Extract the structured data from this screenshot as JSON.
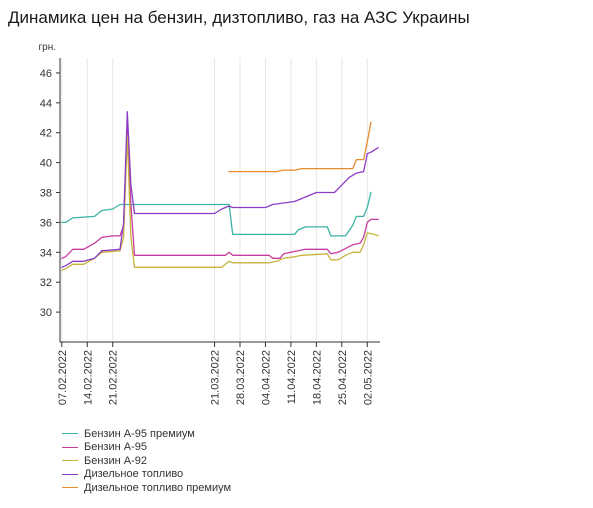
{
  "title": "Динамика цен на бензин, дизтопливо, газ на АЗС Украины",
  "chart_data": {
    "type": "line",
    "title": "Динамика цен на бензин, дизтопливо, газ на АЗС Украины",
    "ylabel": "грн.",
    "xlabel": "",
    "ylim": [
      28,
      47
    ],
    "yticks": [
      30,
      32,
      34,
      36,
      38,
      40,
      42,
      44,
      46
    ],
    "xrange": [
      "2022-02-07",
      "2022-05-05"
    ],
    "xticks": [
      "07.02.2022",
      "14.02.2022",
      "21.02.2022",
      "21.03.2022",
      "28.03.2022",
      "04.04.2022",
      "11.04.2022",
      "18.04.2022",
      "25.04.2022",
      "02.05.2022"
    ],
    "grid": "vertical",
    "legend_position": "bottom-left",
    "series": [
      {
        "name": "Бензин А-95 премиум",
        "color": "#3cb3a6",
        "points": [
          [
            "2022-02-07",
            36.0
          ],
          [
            "2022-02-08",
            36.0
          ],
          [
            "2022-02-10",
            36.3
          ],
          [
            "2022-02-16",
            36.4
          ],
          [
            "2022-02-18",
            36.8
          ],
          [
            "2022-02-21",
            36.9
          ],
          [
            "2022-02-23",
            37.2
          ],
          [
            "2022-03-25",
            37.2
          ],
          [
            "2022-03-26",
            35.2
          ],
          [
            "2022-04-12",
            35.2
          ],
          [
            "2022-04-13",
            35.5
          ],
          [
            "2022-04-15",
            35.7
          ],
          [
            "2022-04-21",
            35.7
          ],
          [
            "2022-04-22",
            35.1
          ],
          [
            "2022-04-26",
            35.1
          ],
          [
            "2022-04-28",
            35.8
          ],
          [
            "2022-04-29",
            36.4
          ],
          [
            "2022-05-01",
            36.4
          ],
          [
            "2022-05-02",
            37.0
          ],
          [
            "2022-05-03",
            38.0
          ]
        ]
      },
      {
        "name": "Бензин А-95",
        "color": "#c63c9d",
        "points": [
          [
            "2022-02-07",
            33.6
          ],
          [
            "2022-02-08",
            33.7
          ],
          [
            "2022-02-10",
            34.2
          ],
          [
            "2022-02-13",
            34.2
          ],
          [
            "2022-02-16",
            34.6
          ],
          [
            "2022-02-18",
            35.0
          ],
          [
            "2022-02-21",
            35.1
          ],
          [
            "2022-02-23",
            35.1
          ],
          [
            "2022-02-24",
            35.8
          ],
          [
            "2022-02-25",
            42.5
          ],
          [
            "2022-02-26",
            37.2
          ],
          [
            "2022-02-27",
            33.8
          ],
          [
            "2022-03-24",
            33.8
          ],
          [
            "2022-03-25",
            34.0
          ],
          [
            "2022-03-26",
            33.8
          ],
          [
            "2022-04-05",
            33.8
          ],
          [
            "2022-04-06",
            33.6
          ],
          [
            "2022-04-08",
            33.6
          ],
          [
            "2022-04-09",
            33.9
          ],
          [
            "2022-04-11",
            34.0
          ],
          [
            "2022-04-13",
            34.1
          ],
          [
            "2022-04-15",
            34.2
          ],
          [
            "2022-04-21",
            34.2
          ],
          [
            "2022-04-22",
            33.9
          ],
          [
            "2022-04-24",
            34.0
          ],
          [
            "2022-04-28",
            34.5
          ],
          [
            "2022-04-30",
            34.6
          ],
          [
            "2022-05-01",
            35.0
          ],
          [
            "2022-05-02",
            36.0
          ],
          [
            "2022-05-03",
            36.2
          ],
          [
            "2022-05-05",
            36.2
          ]
        ]
      },
      {
        "name": "Бензин А-92",
        "color": "#c6b43c",
        "points": [
          [
            "2022-02-07",
            32.8
          ],
          [
            "2022-02-08",
            32.9
          ],
          [
            "2022-02-10",
            33.2
          ],
          [
            "2022-02-13",
            33.2
          ],
          [
            "2022-02-16",
            33.6
          ],
          [
            "2022-02-18",
            34.0
          ],
          [
            "2022-02-23",
            34.1
          ],
          [
            "2022-02-24",
            35.0
          ],
          [
            "2022-02-25",
            41.8
          ],
          [
            "2022-02-26",
            35.0
          ],
          [
            "2022-02-27",
            33.0
          ],
          [
            "2022-03-23",
            33.0
          ],
          [
            "2022-03-25",
            33.4
          ],
          [
            "2022-03-26",
            33.3
          ],
          [
            "2022-04-05",
            33.3
          ],
          [
            "2022-04-07",
            33.4
          ],
          [
            "2022-04-09",
            33.6
          ],
          [
            "2022-04-12",
            33.7
          ],
          [
            "2022-04-14",
            33.8
          ],
          [
            "2022-04-21",
            33.9
          ],
          [
            "2022-04-22",
            33.5
          ],
          [
            "2022-04-24",
            33.5
          ],
          [
            "2022-04-26",
            33.8
          ],
          [
            "2022-04-28",
            34.0
          ],
          [
            "2022-04-30",
            34.0
          ],
          [
            "2022-05-01",
            34.5
          ],
          [
            "2022-05-02",
            35.3
          ],
          [
            "2022-05-04",
            35.2
          ],
          [
            "2022-05-05",
            35.1
          ]
        ]
      },
      {
        "name": "Дизельное топливо",
        "color": "#8b3cc6",
        "points": [
          [
            "2022-02-07",
            33.0
          ],
          [
            "2022-02-08",
            33.1
          ],
          [
            "2022-02-10",
            33.4
          ],
          [
            "2022-02-13",
            33.4
          ],
          [
            "2022-02-16",
            33.6
          ],
          [
            "2022-02-18",
            34.1
          ],
          [
            "2022-02-23",
            34.2
          ],
          [
            "2022-02-24",
            36.0
          ],
          [
            "2022-02-25",
            43.4
          ],
          [
            "2022-02-26",
            38.5
          ],
          [
            "2022-02-27",
            36.6
          ],
          [
            "2022-03-21",
            36.6
          ],
          [
            "2022-03-23",
            36.9
          ],
          [
            "2022-03-25",
            37.1
          ],
          [
            "2022-03-26",
            37.0
          ],
          [
            "2022-04-04",
            37.0
          ],
          [
            "2022-04-06",
            37.2
          ],
          [
            "2022-04-09",
            37.3
          ],
          [
            "2022-04-12",
            37.4
          ],
          [
            "2022-04-14",
            37.6
          ],
          [
            "2022-04-16",
            37.8
          ],
          [
            "2022-04-18",
            38.0
          ],
          [
            "2022-04-23",
            38.0
          ],
          [
            "2022-04-25",
            38.5
          ],
          [
            "2022-04-27",
            39.0
          ],
          [
            "2022-04-29",
            39.3
          ],
          [
            "2022-05-01",
            39.4
          ],
          [
            "2022-05-02",
            40.6
          ],
          [
            "2022-05-03",
            40.7
          ],
          [
            "2022-05-05",
            41.0
          ]
        ]
      },
      {
        "name": "Дизельное топливо премиум",
        "color": "#e88a2e",
        "points": [
          [
            "2022-03-25",
            39.4
          ],
          [
            "2022-04-07",
            39.4
          ],
          [
            "2022-04-09",
            39.5
          ],
          [
            "2022-04-12",
            39.5
          ],
          [
            "2022-04-14",
            39.6
          ],
          [
            "2022-04-21",
            39.6
          ],
          [
            "2022-04-28",
            39.6
          ],
          [
            "2022-04-29",
            40.2
          ],
          [
            "2022-05-01",
            40.2
          ],
          [
            "2022-05-02",
            41.4
          ],
          [
            "2022-05-03",
            42.7
          ]
        ]
      }
    ]
  }
}
